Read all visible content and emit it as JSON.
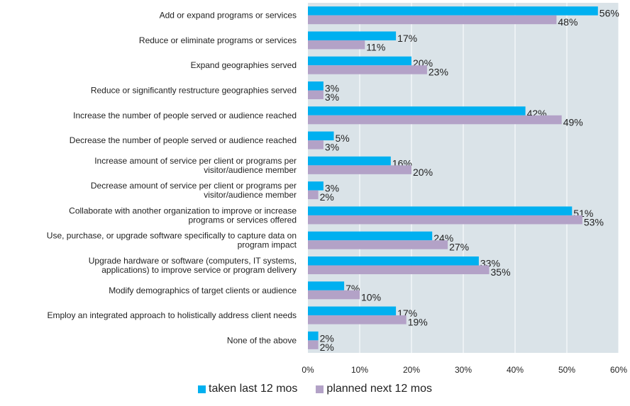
{
  "chart_data": {
    "type": "bar",
    "orientation": "horizontal",
    "categories": [
      [
        "Add or expand programs or services"
      ],
      [
        "Reduce or eliminate programs or services"
      ],
      [
        "Expand geographies served"
      ],
      [
        "Reduce or significantly restructure geographies served"
      ],
      [
        "Increase the number of people served or audience reached"
      ],
      [
        "Decrease the number of people served or audience reached"
      ],
      [
        "Increase amount of service per client or programs per",
        "visitor/audience member"
      ],
      [
        "Decrease amount of service per client or programs per",
        "visitor/audience member"
      ],
      [
        "Collaborate with another organization to improve or increase",
        "programs or services offered"
      ],
      [
        "Use, purchase, or upgrade software specifically to capture data on",
        "program impact"
      ],
      [
        "Upgrade hardware or software (computers, IT systems,",
        "applications) to improve service or program delivery"
      ],
      [
        "Modify demographics of target clients or audience"
      ],
      [
        "Employ an integrated approach to holistically address client needs"
      ],
      [
        "None of the above"
      ]
    ],
    "series": [
      {
        "name": "taken last 12 mos",
        "color": "#00b0f0",
        "values": [
          56,
          17,
          20,
          3,
          42,
          5,
          16,
          3,
          51,
          24,
          33,
          7,
          17,
          2
        ],
        "labels": [
          "56%",
          "17%",
          "20%",
          "3%",
          "42%",
          "5%",
          "16%",
          "3%",
          "51%",
          "24%",
          "33%",
          "7%",
          "17%",
          "2%"
        ]
      },
      {
        "name": "planned next 12 mos",
        "color": "#b3a2c7",
        "values": [
          48,
          11,
          23,
          3,
          49,
          3,
          20,
          2,
          53,
          27,
          35,
          10,
          19,
          2
        ],
        "labels": [
          "48%",
          "11%",
          "23%",
          "3%",
          "49%",
          "3%",
          "20%",
          "2%",
          "53%",
          "27%",
          "35%",
          "10%",
          "19%",
          "2%"
        ]
      }
    ],
    "xlim": [
      0,
      60
    ],
    "xticks": [
      0,
      10,
      20,
      30,
      40,
      50,
      60
    ],
    "xtick_labels": [
      "0%",
      "10%",
      "20%",
      "30%",
      "40%",
      "50%",
      "60%"
    ],
    "grid": true,
    "plot_background": "#dae3e8",
    "legend_position": "bottom"
  }
}
